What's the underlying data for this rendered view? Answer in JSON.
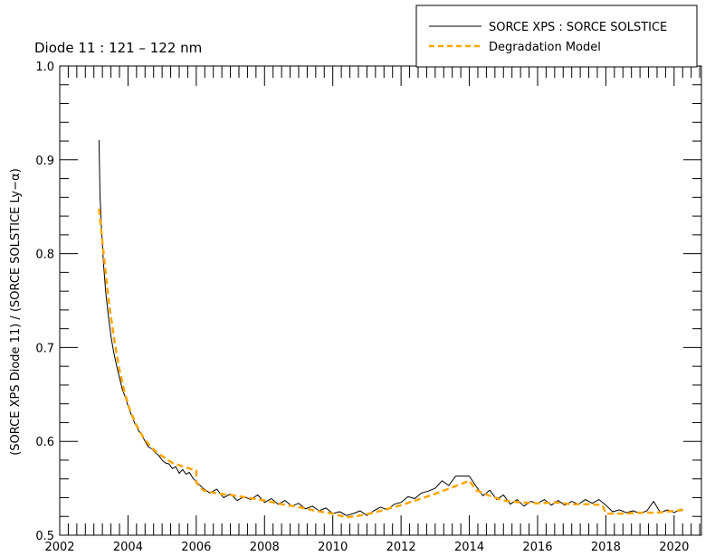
{
  "chart_data": {
    "type": "line",
    "title": "Diode 11 : 121 – 122 nm",
    "xlabel": "",
    "ylabel": "(SORCE XPS Diode 11) / (SORCE SOLSTICE Ly−α)",
    "xlim": [
      2002,
      2020.8
    ],
    "ylim": [
      0.5,
      1.0
    ],
    "xticks": [
      2002,
      2004,
      2006,
      2008,
      2010,
      2012,
      2014,
      2016,
      2018,
      2020
    ],
    "xtick_labels": [
      "2002",
      "2004",
      "2006",
      "2008",
      "2010",
      "2012",
      "2014",
      "2016",
      "2018",
      "2020"
    ],
    "yticks": [
      0.5,
      0.6,
      0.7,
      0.8,
      0.9,
      1.0
    ],
    "ytick_labels": [
      "0.5",
      "0.6",
      "0.7",
      "0.8",
      "0.9",
      "1.0"
    ],
    "grid": false,
    "legend_position": "top-right",
    "series": [
      {
        "name": "SORCE XPS : SORCE SOLSTICE",
        "color": "#000000",
        "style": "solid",
        "x": [
          2003.15,
          2003.18,
          2003.22,
          2003.28,
          2003.35,
          2003.42,
          2003.5,
          2003.58,
          2003.67,
          2003.75,
          2003.83,
          2003.92,
          2004.0,
          2004.1,
          2004.2,
          2004.3,
          2004.4,
          2004.5,
          2004.6,
          2004.7,
          2004.8,
          2004.9,
          2005.0,
          2005.1,
          2005.2,
          2005.3,
          2005.4,
          2005.5,
          2005.6,
          2005.7,
          2005.8,
          2005.9,
          2006.0,
          2006.2,
          2006.4,
          2006.6,
          2006.8,
          2007.0,
          2007.2,
          2007.4,
          2007.6,
          2007.8,
          2008.0,
          2008.2,
          2008.4,
          2008.6,
          2008.8,
          2009.0,
          2009.2,
          2009.4,
          2009.6,
          2009.8,
          2010.0,
          2010.2,
          2010.4,
          2010.6,
          2010.8,
          2011.0,
          2011.2,
          2011.4,
          2011.6,
          2011.8,
          2012.0,
          2012.2,
          2012.4,
          2012.6,
          2012.8,
          2013.0,
          2013.2,
          2013.4,
          2013.6,
          2013.8,
          2014.0,
          2014.2,
          2014.4,
          2014.6,
          2014.8,
          2015.0,
          2015.2,
          2015.4,
          2015.6,
          2015.8,
          2016.0,
          2016.2,
          2016.4,
          2016.6,
          2016.8,
          2017.0,
          2017.2,
          2017.4,
          2017.6,
          2017.8,
          2018.0,
          2018.2,
          2018.4,
          2018.6,
          2018.8,
          2019.0,
          2019.2,
          2019.4,
          2019.6,
          2019.8,
          2020.0,
          2020.2
        ],
        "y": [
          0.921,
          0.862,
          0.83,
          0.79,
          0.758,
          0.735,
          0.712,
          0.695,
          0.68,
          0.668,
          0.656,
          0.647,
          0.638,
          0.628,
          0.619,
          0.612,
          0.607,
          0.6,
          0.594,
          0.592,
          0.588,
          0.585,
          0.58,
          0.577,
          0.576,
          0.571,
          0.573,
          0.566,
          0.57,
          0.565,
          0.567,
          0.561,
          0.557,
          0.55,
          0.545,
          0.549,
          0.54,
          0.544,
          0.537,
          0.541,
          0.538,
          0.543,
          0.535,
          0.539,
          0.533,
          0.537,
          0.531,
          0.534,
          0.528,
          0.531,
          0.526,
          0.529,
          0.523,
          0.525,
          0.521,
          0.523,
          0.526,
          0.521,
          0.526,
          0.53,
          0.527,
          0.533,
          0.535,
          0.541,
          0.539,
          0.545,
          0.547,
          0.55,
          0.558,
          0.553,
          0.563,
          0.563,
          0.563,
          0.552,
          0.542,
          0.548,
          0.538,
          0.543,
          0.533,
          0.538,
          0.531,
          0.536,
          0.534,
          0.538,
          0.532,
          0.537,
          0.532,
          0.536,
          0.533,
          0.538,
          0.534,
          0.538,
          0.532,
          0.525,
          0.527,
          0.524,
          0.526,
          0.523,
          0.526,
          0.536,
          0.524,
          0.527,
          0.524,
          0.528
        ]
      },
      {
        "name": "Degradation Model",
        "color": "#ffa500",
        "style": "dashed",
        "x": [
          2003.15,
          2003.3,
          2003.45,
          2003.6,
          2003.75,
          2003.9,
          2004.05,
          2004.25,
          2004.45,
          2004.65,
          2004.85,
          2005.05,
          2005.3,
          2005.55,
          2005.8,
          2006.0,
          2006.0,
          2006.2,
          2006.4,
          2006.7,
          2007.0,
          2007.5,
          2008.0,
          2008.5,
          2009.0,
          2009.5,
          2010.0,
          2010.4,
          2010.8,
          2011.2,
          2011.6,
          2012.0,
          2012.5,
          2013.0,
          2013.5,
          2014.0,
          2014.2,
          2014.6,
          2015.0,
          2015.5,
          2016.0,
          2016.5,
          2017.0,
          2017.5,
          2017.9,
          2018.0,
          2018.5,
          2019.0,
          2019.5,
          2020.0,
          2020.3
        ],
        "y": [
          0.848,
          0.795,
          0.745,
          0.708,
          0.676,
          0.652,
          0.634,
          0.617,
          0.604,
          0.595,
          0.588,
          0.583,
          0.577,
          0.574,
          0.571,
          0.569,
          0.556,
          0.548,
          0.546,
          0.544,
          0.543,
          0.54,
          0.537,
          0.533,
          0.53,
          0.526,
          0.523,
          0.519,
          0.521,
          0.524,
          0.528,
          0.532,
          0.538,
          0.544,
          0.551,
          0.558,
          0.548,
          0.542,
          0.537,
          0.535,
          0.534,
          0.535,
          0.533,
          0.533,
          0.532,
          0.523,
          0.523,
          0.524,
          0.524,
          0.526,
          0.527
        ]
      }
    ]
  }
}
